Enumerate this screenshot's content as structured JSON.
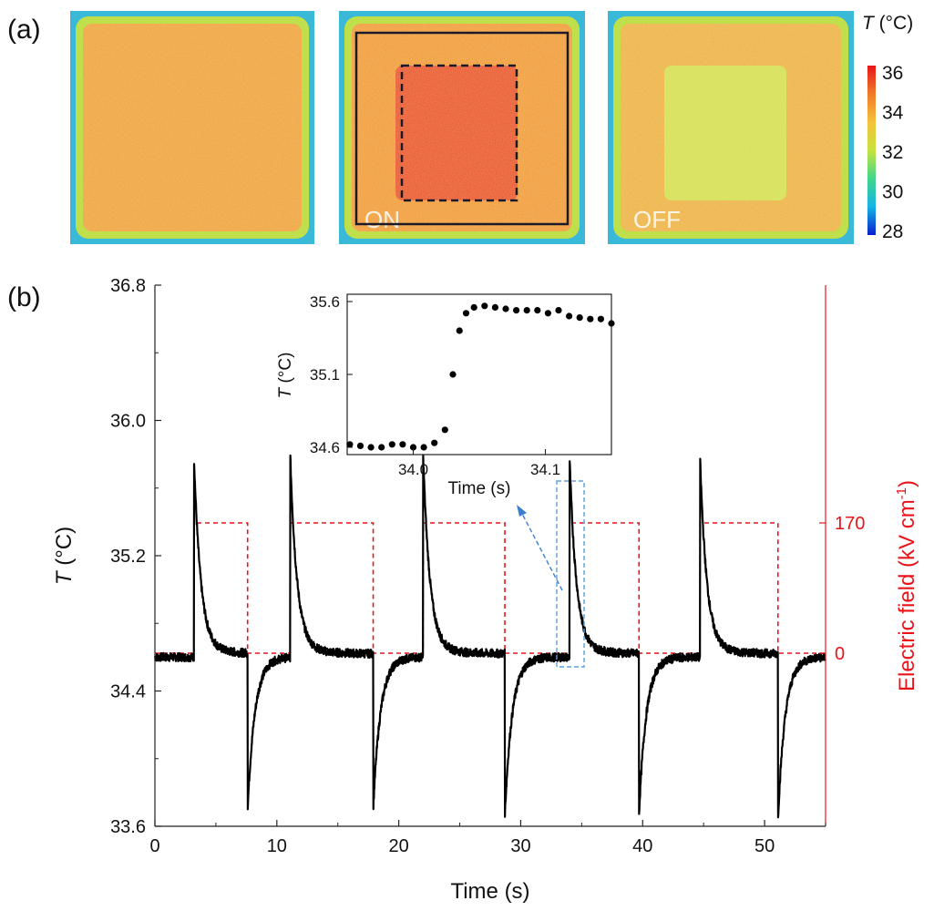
{
  "panel_a": {
    "label": "(a)",
    "images": [
      {
        "label": "",
        "state": "initial",
        "edge_color": "#3ab8d8",
        "body_color": "#eea03c",
        "center_color": "#eea03c"
      },
      {
        "label": "ON",
        "state": "field-on",
        "edge_color": "#3ab8d8",
        "body_color": "#f09838",
        "center_color": "#e8502c"
      },
      {
        "label": "OFF",
        "state": "field-off",
        "edge_color": "#3ab8d8",
        "body_color": "#ecb045",
        "center_color": "#d2e052"
      }
    ],
    "colorbar": {
      "title_var": "T",
      "title_unit": " (°C)",
      "ticks": [
        "36",
        "34",
        "32",
        "30",
        "28"
      ],
      "range": [
        28,
        36
      ],
      "colors": [
        "#0a1fcf",
        "#14b4e6",
        "#41d78a",
        "#c8e23c",
        "#f5c23a",
        "#f07a28",
        "#e8141a"
      ]
    }
  },
  "panel_b": {
    "label": "(b)",
    "left_axis": {
      "title_var": "T",
      "title_unit": " (°C)",
      "ticks": [
        "33.6",
        "34.4",
        "35.2",
        "36.0",
        "36.8"
      ]
    },
    "right_axis": {
      "title": "Electric field (kV cm",
      "title_sup": "-1",
      "title_end": ")",
      "ticks": [
        "0",
        "170"
      ]
    },
    "x_axis": {
      "title": "Time (s)",
      "ticks": [
        "0",
        "10",
        "20",
        "30",
        "40",
        "50"
      ]
    },
    "inset": {
      "xlabel": "Time (s)",
      "ylabel_var": "T",
      "ylabel_unit": " (°C)",
      "x_ticks": [
        "34.0",
        "34.1"
      ],
      "y_ticks": [
        "34.6",
        "35.1",
        "35.6"
      ]
    }
  },
  "chart_data": {
    "type": "line",
    "xlabel": "Time (s)",
    "ylabel": "T (°C)",
    "y2label": "Electric field (kV cm-1)",
    "xlim": [
      0,
      55
    ],
    "ylim": [
      33.6,
      36.8
    ],
    "y2lim": [
      0,
      170
    ],
    "baseline_T": 34.6,
    "on_events": [
      {
        "t_on": 3.2,
        "t_off": 7.6,
        "peak_T": 35.73,
        "min_T": 33.7
      },
      {
        "t_on": 11.1,
        "t_off": 17.9,
        "peak_T": 35.73,
        "min_T": 33.7
      },
      {
        "t_on": 22.0,
        "t_off": 28.7,
        "peak_T": 35.73,
        "min_T": 33.67
      },
      {
        "t_on": 34.0,
        "t_off": 39.7,
        "peak_T": 35.73,
        "min_T": 33.67
      },
      {
        "t_on": 44.7,
        "t_off": 51.1,
        "peak_T": 35.73,
        "min_T": 33.65
      }
    ],
    "series": [
      {
        "name": "T",
        "color": "#000000",
        "axis": "left"
      },
      {
        "name": "Electric field",
        "color": "#e8141a",
        "axis": "right",
        "values_kVcm": [
          0,
          170
        ]
      }
    ],
    "inset": {
      "type": "scatter",
      "xlim": [
        33.95,
        34.15
      ],
      "ylim": [
        34.55,
        35.65
      ],
      "x": [
        33.952,
        33.96,
        33.968,
        33.976,
        33.984,
        33.992,
        34.0,
        34.008,
        34.016,
        34.024,
        34.03,
        34.035,
        34.04,
        34.046,
        34.054,
        34.062,
        34.07,
        34.078,
        34.086,
        34.094,
        34.102,
        34.11,
        34.118,
        34.126,
        34.134,
        34.142,
        34.15
      ],
      "y": [
        34.62,
        34.61,
        34.6,
        34.6,
        34.62,
        34.62,
        34.6,
        34.6,
        34.63,
        34.72,
        35.1,
        35.4,
        35.52,
        35.56,
        35.57,
        35.56,
        35.55,
        35.54,
        35.54,
        35.54,
        35.52,
        35.54,
        35.5,
        35.49,
        35.48,
        35.48,
        35.45
      ]
    }
  }
}
